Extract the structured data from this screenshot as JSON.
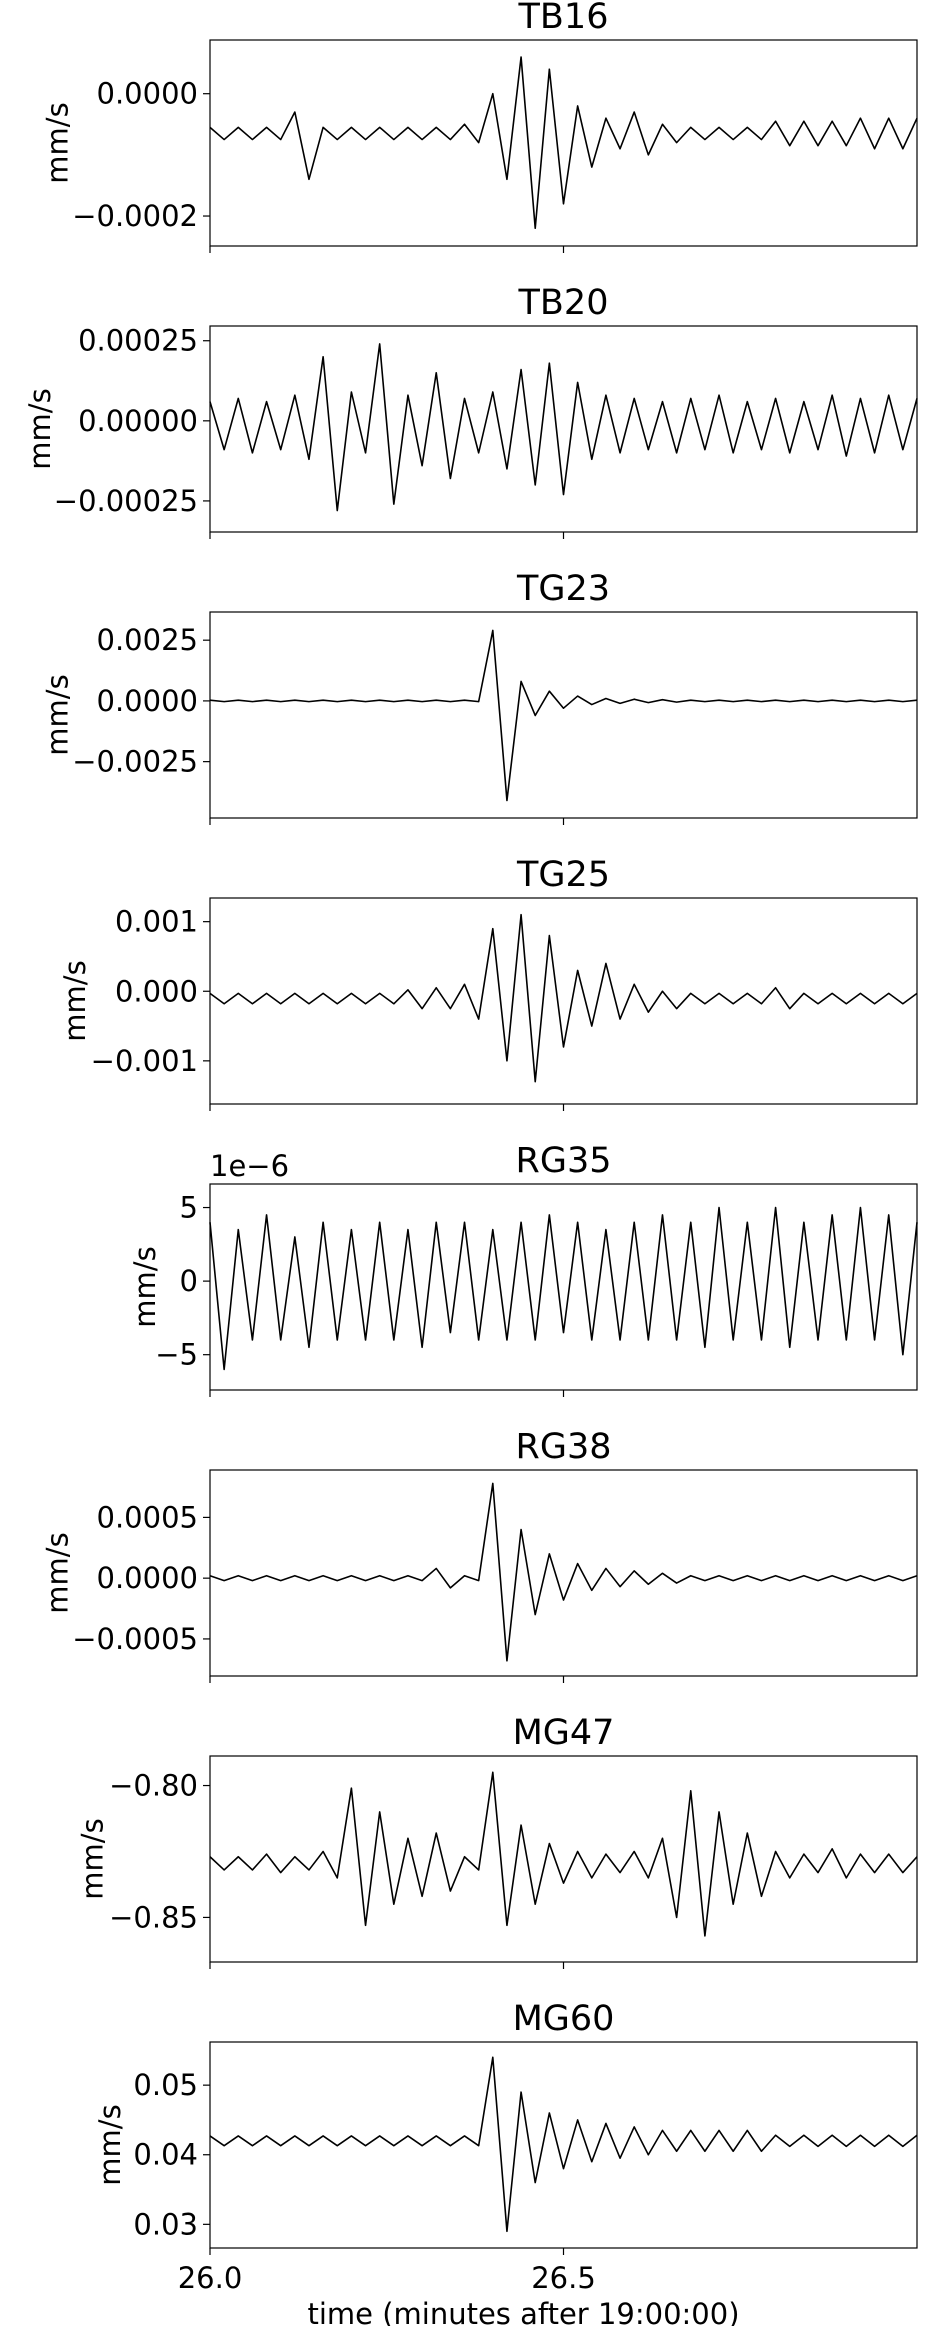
{
  "chart_data": [
    {
      "type": "line",
      "title": "TB16",
      "ylabel": "mm/s",
      "xlim": [
        26,
        27
      ],
      "xticks": [
        26,
        26.5
      ],
      "ylim": [
        -0.000249,
        8.78e-05
      ],
      "yticks": [
        {
          "value": 0,
          "label": "0.0000"
        },
        {
          "value": -0.0002,
          "label": "−0.0002"
        }
      ],
      "x": [
        26,
        26.02,
        26.04,
        26.06,
        26.08,
        26.1,
        26.12,
        26.14,
        26.16,
        26.18,
        26.2,
        26.22,
        26.24,
        26.26,
        26.28,
        26.3,
        26.32,
        26.34,
        26.36,
        26.38,
        26.4,
        26.42,
        26.44,
        26.46,
        26.48,
        26.5,
        26.52,
        26.54,
        26.56,
        26.58,
        26.6,
        26.62,
        26.64,
        26.66,
        26.68,
        26.7,
        26.72,
        26.74,
        26.76,
        26.78,
        26.8,
        26.82,
        26.84,
        26.86,
        26.88,
        26.9,
        26.92,
        26.94,
        26.96,
        26.98,
        27
      ],
      "series": [
        {
          "color": "#000000",
          "values": [
            -5.5e-05,
            -7.5e-05,
            -5.5e-05,
            -7.5e-05,
            -5.5e-05,
            -7.5e-05,
            -3e-05,
            -0.00014,
            -5.5e-05,
            -7.5e-05,
            -5.5e-05,
            -7.5e-05,
            -5.5e-05,
            -7.5e-05,
            -5.5e-05,
            -7.5e-05,
            -5.5e-05,
            -7.5e-05,
            -5e-05,
            -8e-05,
            0,
            -0.00014,
            6e-05,
            -0.00022,
            4e-05,
            -0.00018,
            -2e-05,
            -0.00012,
            -4e-05,
            -9e-05,
            -3e-05,
            -0.0001,
            -5e-05,
            -8e-05,
            -5.5e-05,
            -7.5e-05,
            -5.5e-05,
            -7.5e-05,
            -5.5e-05,
            -7.5e-05,
            -4.5e-05,
            -8.5e-05,
            -4.5e-05,
            -8.5e-05,
            -4.5e-05,
            -8.5e-05,
            -4e-05,
            -9e-05,
            -4e-05,
            -9e-05,
            -4e-05
          ]
        }
      ]
    },
    {
      "type": "line",
      "title": "TB20",
      "ylabel": "mm/s",
      "xlim": [
        26,
        27
      ],
      "xticks": [
        26,
        26.5
      ],
      "ylim": [
        -0.000347,
        0.000296
      ],
      "yticks": [
        {
          "value": 0.00025,
          "label": "0.00025"
        },
        {
          "value": 0,
          "label": "0.00000"
        },
        {
          "value": -0.00025,
          "label": "−0.00025"
        }
      ],
      "x": [
        26,
        26.02,
        26.04,
        26.06,
        26.08,
        26.1,
        26.12,
        26.14,
        26.16,
        26.18,
        26.2,
        26.22,
        26.24,
        26.26,
        26.28,
        26.3,
        26.32,
        26.34,
        26.36,
        26.38,
        26.4,
        26.42,
        26.44,
        26.46,
        26.48,
        26.5,
        26.52,
        26.54,
        26.56,
        26.58,
        26.6,
        26.62,
        26.64,
        26.66,
        26.68,
        26.7,
        26.72,
        26.74,
        26.76,
        26.78,
        26.8,
        26.82,
        26.84,
        26.86,
        26.88,
        26.9,
        26.92,
        26.94,
        26.96,
        26.98,
        27
      ],
      "series": [
        {
          "color": "#000000",
          "values": [
            6e-05,
            -9e-05,
            7e-05,
            -0.0001,
            6e-05,
            -9e-05,
            8e-05,
            -0.00012,
            0.0002,
            -0.00028,
            9e-05,
            -0.0001,
            0.00024,
            -0.00026,
            8e-05,
            -0.00014,
            0.00015,
            -0.00018,
            7e-05,
            -0.0001,
            9e-05,
            -0.00015,
            0.00016,
            -0.0002,
            0.00018,
            -0.00023,
            0.00012,
            -0.00012,
            8e-05,
            -0.0001,
            7e-05,
            -9e-05,
            6e-05,
            -0.0001,
            7e-05,
            -9e-05,
            8e-05,
            -0.0001,
            6e-05,
            -9e-05,
            7e-05,
            -0.0001,
            6e-05,
            -9e-05,
            8e-05,
            -0.00011,
            7e-05,
            -0.0001,
            8e-05,
            -9e-05,
            7e-05
          ]
        }
      ]
    },
    {
      "type": "line",
      "title": "TG23",
      "ylabel": "mm/s",
      "xlim": [
        26,
        27
      ],
      "xticks": [
        26,
        26.5
      ],
      "ylim": [
        -0.00482,
        0.00366
      ],
      "yticks": [
        {
          "value": 0.0025,
          "label": "0.0025"
        },
        {
          "value": 0,
          "label": "0.0000"
        },
        {
          "value": -0.0025,
          "label": "−0.0025"
        }
      ],
      "x": [
        26,
        26.02,
        26.04,
        26.06,
        26.08,
        26.1,
        26.12,
        26.14,
        26.16,
        26.18,
        26.2,
        26.22,
        26.24,
        26.26,
        26.28,
        26.3,
        26.32,
        26.34,
        26.36,
        26.38,
        26.4,
        26.42,
        26.44,
        26.46,
        26.48,
        26.5,
        26.52,
        26.54,
        26.56,
        26.58,
        26.6,
        26.62,
        26.64,
        26.66,
        26.68,
        26.7,
        26.72,
        26.74,
        26.76,
        26.78,
        26.8,
        26.82,
        26.84,
        26.86,
        26.88,
        26.9,
        26.92,
        26.94,
        26.96,
        26.98,
        27
      ],
      "series": [
        {
          "color": "#000000",
          "values": [
            3e-05,
            -3e-05,
            3e-05,
            -3e-05,
            3e-05,
            -3e-05,
            3e-05,
            -3e-05,
            3e-05,
            -3e-05,
            3e-05,
            -3e-05,
            3e-05,
            -3e-05,
            3e-05,
            -3e-05,
            3e-05,
            -3e-05,
            3e-05,
            -3e-05,
            0.0029,
            -0.0041,
            0.0008,
            -0.0006,
            0.0004,
            -0.0003,
            0.0002,
            -0.00015,
            0.0001,
            -0.0001,
            7e-05,
            -7e-05,
            5e-05,
            -5e-05,
            3e-05,
            -3e-05,
            3e-05,
            -3e-05,
            3e-05,
            -3e-05,
            3e-05,
            -3e-05,
            3e-05,
            -3e-05,
            3e-05,
            -3e-05,
            3e-05,
            -3e-05,
            3e-05,
            -3e-05,
            3e-05
          ]
        }
      ]
    },
    {
      "type": "line",
      "title": "TG25",
      "ylabel": "mm/s",
      "xlim": [
        26,
        27
      ],
      "xticks": [
        26,
        26.5
      ],
      "ylim": [
        -0.00162,
        0.00134
      ],
      "yticks": [
        {
          "value": 0.001,
          "label": "0.001"
        },
        {
          "value": 0,
          "label": "0.000"
        },
        {
          "value": -0.001,
          "label": "−0.001"
        }
      ],
      "x": [
        26,
        26.02,
        26.04,
        26.06,
        26.08,
        26.1,
        26.12,
        26.14,
        26.16,
        26.18,
        26.2,
        26.22,
        26.24,
        26.26,
        26.28,
        26.3,
        26.32,
        26.34,
        26.36,
        26.38,
        26.4,
        26.42,
        26.44,
        26.46,
        26.48,
        26.5,
        26.52,
        26.54,
        26.56,
        26.58,
        26.6,
        26.62,
        26.64,
        26.66,
        26.68,
        26.7,
        26.72,
        26.74,
        26.76,
        26.78,
        26.8,
        26.82,
        26.84,
        26.86,
        26.88,
        26.9,
        26.92,
        26.94,
        26.96,
        26.98,
        27
      ],
      "series": [
        {
          "color": "#000000",
          "values": [
            -3e-05,
            -0.00018,
            -3e-05,
            -0.00018,
            -3e-05,
            -0.00018,
            -3e-05,
            -0.00018,
            -3e-05,
            -0.00018,
            -3e-05,
            -0.00018,
            -3e-05,
            -0.00018,
            2e-05,
            -0.00025,
            5e-05,
            -0.00025,
            0.0001,
            -0.0004,
            0.0009,
            -0.001,
            0.0011,
            -0.0013,
            0.0008,
            -0.0008,
            0.0003,
            -0.0005,
            0.0004,
            -0.0004,
            0.0001,
            -0.0003,
            0,
            -0.00025,
            -3e-05,
            -0.00018,
            -3e-05,
            -0.00018,
            -3e-05,
            -0.00018,
            5e-05,
            -0.00025,
            -3e-05,
            -0.00018,
            -3e-05,
            -0.00018,
            -3e-05,
            -0.00018,
            -3e-05,
            -0.00018,
            -3e-05
          ]
        }
      ]
    },
    {
      "type": "line",
      "title": "RG35",
      "ylabel": "mm/s",
      "offset_text": "1e−6",
      "xlim": [
        26,
        27
      ],
      "xticks": [
        26,
        26.5
      ],
      "ylim": [
        -7.4e-06,
        6.6e-06
      ],
      "yticks": [
        {
          "value": 5e-06,
          "label": "5"
        },
        {
          "value": 0,
          "label": "0"
        },
        {
          "value": -5e-06,
          "label": "−5"
        }
      ],
      "x": [
        26,
        26.02,
        26.04,
        26.06,
        26.08,
        26.1,
        26.12,
        26.14,
        26.16,
        26.18,
        26.2,
        26.22,
        26.24,
        26.26,
        26.28,
        26.3,
        26.32,
        26.34,
        26.36,
        26.38,
        26.4,
        26.42,
        26.44,
        26.46,
        26.48,
        26.5,
        26.52,
        26.54,
        26.56,
        26.58,
        26.6,
        26.62,
        26.64,
        26.66,
        26.68,
        26.7,
        26.72,
        26.74,
        26.76,
        26.78,
        26.8,
        26.82,
        26.84,
        26.86,
        26.88,
        26.9,
        26.92,
        26.94,
        26.96,
        26.98,
        27
      ],
      "series": [
        {
          "color": "#000000",
          "values": [
            4e-06,
            -6e-06,
            3.5e-06,
            -4e-06,
            4.5e-06,
            -4e-06,
            3e-06,
            -4.5e-06,
            4e-06,
            -4e-06,
            3.5e-06,
            -4e-06,
            4e-06,
            -4e-06,
            3.5e-06,
            -4.5e-06,
            4e-06,
            -3.5e-06,
            4e-06,
            -4e-06,
            3.5e-06,
            -4e-06,
            4e-06,
            -4e-06,
            4.5e-06,
            -3.5e-06,
            4e-06,
            -4e-06,
            3.5e-06,
            -4e-06,
            4e-06,
            -4e-06,
            4.5e-06,
            -4e-06,
            4e-06,
            -4.5e-06,
            5e-06,
            -4e-06,
            4e-06,
            -4e-06,
            5e-06,
            -4.5e-06,
            4e-06,
            -4e-06,
            4.5e-06,
            -4e-06,
            5e-06,
            -4e-06,
            4.5e-06,
            -5e-06,
            4e-06
          ]
        }
      ]
    },
    {
      "type": "line",
      "title": "RG38",
      "ylabel": "mm/s",
      "xlim": [
        26,
        27
      ],
      "xticks": [
        26,
        26.5
      ],
      "ylim": [
        -0.000805,
        0.00089
      ],
      "yticks": [
        {
          "value": 0.0005,
          "label": "0.0005"
        },
        {
          "value": 0,
          "label": "0.0000"
        },
        {
          "value": -0.0005,
          "label": "−0.0005"
        }
      ],
      "x": [
        26,
        26.02,
        26.04,
        26.06,
        26.08,
        26.1,
        26.12,
        26.14,
        26.16,
        26.18,
        26.2,
        26.22,
        26.24,
        26.26,
        26.28,
        26.3,
        26.32,
        26.34,
        26.36,
        26.38,
        26.4,
        26.42,
        26.44,
        26.46,
        26.48,
        26.5,
        26.52,
        26.54,
        26.56,
        26.58,
        26.6,
        26.62,
        26.64,
        26.66,
        26.68,
        26.7,
        26.72,
        26.74,
        26.76,
        26.78,
        26.8,
        26.82,
        26.84,
        26.86,
        26.88,
        26.9,
        26.92,
        26.94,
        26.96,
        26.98,
        27
      ],
      "series": [
        {
          "color": "#000000",
          "values": [
            2e-05,
            -2e-05,
            2e-05,
            -2e-05,
            2e-05,
            -2e-05,
            2e-05,
            -2e-05,
            2e-05,
            -2e-05,
            2e-05,
            -2e-05,
            2e-05,
            -2e-05,
            2e-05,
            -2e-05,
            8e-05,
            -8e-05,
            2e-05,
            -2e-05,
            0.00078,
            -0.00068,
            0.0004,
            -0.0003,
            0.0002,
            -0.00018,
            0.00012,
            -0.0001,
            8e-05,
            -7e-05,
            6e-05,
            -5e-05,
            4e-05,
            -4e-05,
            2e-05,
            -2e-05,
            2e-05,
            -2e-05,
            2e-05,
            -2e-05,
            2e-05,
            -2e-05,
            2e-05,
            -2e-05,
            2e-05,
            -2e-05,
            2e-05,
            -2e-05,
            2e-05,
            -2e-05,
            2e-05
          ]
        }
      ]
    },
    {
      "type": "line",
      "title": "MG47",
      "ylabel": "mm/s",
      "xlim": [
        26,
        27
      ],
      "xticks": [
        26,
        26.5
      ],
      "ylim": [
        -0.8669,
        -0.7888
      ],
      "yticks": [
        {
          "value": -0.8,
          "label": "−0.80"
        },
        {
          "value": -0.85,
          "label": "−0.85"
        }
      ],
      "x": [
        26,
        26.02,
        26.04,
        26.06,
        26.08,
        26.1,
        26.12,
        26.14,
        26.16,
        26.18,
        26.2,
        26.22,
        26.24,
        26.26,
        26.28,
        26.3,
        26.32,
        26.34,
        26.36,
        26.38,
        26.4,
        26.42,
        26.44,
        26.46,
        26.48,
        26.5,
        26.52,
        26.54,
        26.56,
        26.58,
        26.6,
        26.62,
        26.64,
        26.66,
        26.68,
        26.7,
        26.72,
        26.74,
        26.76,
        26.78,
        26.8,
        26.82,
        26.84,
        26.86,
        26.88,
        26.9,
        26.92,
        26.94,
        26.96,
        26.98,
        27
      ],
      "series": [
        {
          "color": "#000000",
          "values": [
            -0.827,
            -0.832,
            -0.827,
            -0.832,
            -0.826,
            -0.833,
            -0.827,
            -0.832,
            -0.825,
            -0.835,
            -0.801,
            -0.853,
            -0.81,
            -0.845,
            -0.82,
            -0.842,
            -0.818,
            -0.84,
            -0.827,
            -0.832,
            -0.795,
            -0.853,
            -0.815,
            -0.845,
            -0.822,
            -0.837,
            -0.825,
            -0.835,
            -0.826,
            -0.833,
            -0.825,
            -0.835,
            -0.82,
            -0.85,
            -0.802,
            -0.857,
            -0.81,
            -0.845,
            -0.818,
            -0.842,
            -0.825,
            -0.835,
            -0.826,
            -0.833,
            -0.824,
            -0.835,
            -0.826,
            -0.833,
            -0.826,
            -0.833,
            -0.827
          ]
        }
      ]
    },
    {
      "type": "line",
      "title": "MG60",
      "ylabel": "mm/s",
      "xlabel": "time (minutes after 19:00:00)",
      "xlim": [
        26,
        27
      ],
      "xticks": [
        {
          "value": 26,
          "label": "26.0"
        },
        {
          "value": 26.5,
          "label": "26.5"
        }
      ],
      "ylim": [
        0.0266,
        0.0562
      ],
      "yticks": [
        {
          "value": 0.05,
          "label": "0.05"
        },
        {
          "value": 0.04,
          "label": "0.04"
        },
        {
          "value": 0.03,
          "label": "0.03"
        }
      ],
      "x": [
        26,
        26.02,
        26.04,
        26.06,
        26.08,
        26.1,
        26.12,
        26.14,
        26.16,
        26.18,
        26.2,
        26.22,
        26.24,
        26.26,
        26.28,
        26.3,
        26.32,
        26.34,
        26.36,
        26.38,
        26.4,
        26.42,
        26.44,
        26.46,
        26.48,
        26.5,
        26.52,
        26.54,
        26.56,
        26.58,
        26.6,
        26.62,
        26.64,
        26.66,
        26.68,
        26.7,
        26.72,
        26.74,
        26.76,
        26.78,
        26.8,
        26.82,
        26.84,
        26.86,
        26.88,
        26.9,
        26.92,
        26.94,
        26.96,
        26.98,
        27
      ],
      "series": [
        {
          "color": "#000000",
          "values": [
            0.0427,
            0.0413,
            0.0427,
            0.0413,
            0.0427,
            0.0413,
            0.0427,
            0.0413,
            0.0427,
            0.0413,
            0.0427,
            0.0413,
            0.0427,
            0.0413,
            0.0427,
            0.0413,
            0.0427,
            0.0413,
            0.0427,
            0.0413,
            0.054,
            0.029,
            0.049,
            0.036,
            0.046,
            0.038,
            0.045,
            0.039,
            0.0445,
            0.0395,
            0.044,
            0.04,
            0.0435,
            0.0405,
            0.0435,
            0.0405,
            0.0435,
            0.0405,
            0.0435,
            0.0405,
            0.0428,
            0.0412,
            0.0428,
            0.0412,
            0.0428,
            0.0412,
            0.0428,
            0.0412,
            0.0428,
            0.0412,
            0.0428
          ]
        }
      ]
    }
  ]
}
